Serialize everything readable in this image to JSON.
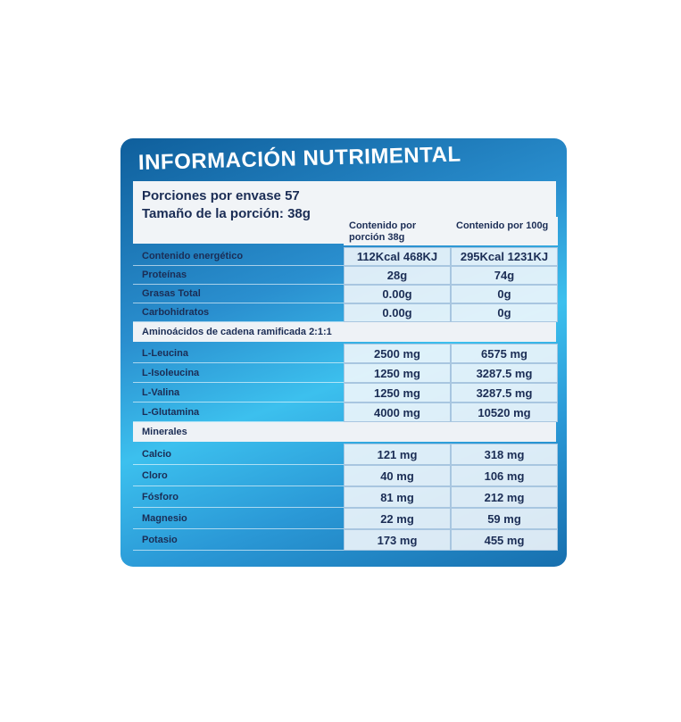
{
  "header": {
    "title": "INFORMACIÓN NUTRIMENTAL",
    "servings": "Porciones por envase 57",
    "serving_size": "Tamaño de la porción: 38g"
  },
  "table": {
    "columns": [
      "Contenido por porción 38g",
      "Contenido por 100g"
    ],
    "groups": [
      {
        "rows": [
          [
            "Contenido energético",
            "112Kcal 468KJ",
            "295Kcal 1231KJ"
          ],
          [
            "Proteínas",
            "28g",
            "74g"
          ],
          [
            "Grasas Total",
            "0.00g",
            "0g"
          ],
          [
            "Carbohidratos",
            "0.00g",
            "0g"
          ]
        ]
      },
      {
        "title": "Aminoácidos de cadena ramificada 2:1:1",
        "rows": [
          [
            "L-Leucina",
            "2500 mg",
            "6575 mg"
          ],
          [
            "L-Isoleucina",
            "1250 mg",
            "3287.5 mg"
          ],
          [
            "L-Valina",
            "1250 mg",
            "3287.5 mg"
          ],
          [
            "L-Glutamina",
            "4000 mg",
            "10520 mg"
          ]
        ]
      },
      {
        "title": "Minerales",
        "rows": [
          [
            "Calcio",
            "121 mg",
            "318 mg"
          ],
          [
            "Cloro",
            "40 mg",
            "106 mg"
          ],
          [
            "Fósforo",
            "81 mg",
            "212 mg"
          ],
          [
            "Magnesio",
            "22 mg",
            "59 mg"
          ],
          [
            "Potasio",
            "173 mg",
            "455 mg"
          ]
        ]
      }
    ]
  }
}
